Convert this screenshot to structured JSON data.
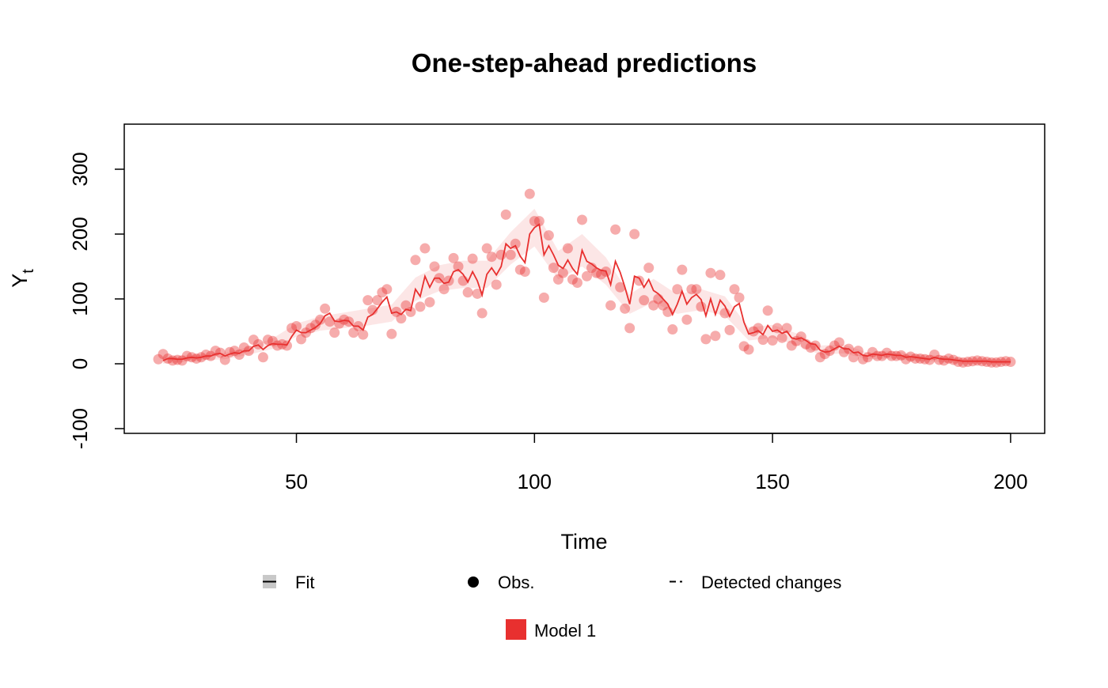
{
  "chart_data": {
    "type": "line",
    "title": "One-step-ahead predictions",
    "xlabel": "Time",
    "ylabel": {
      "main": "Y",
      "sub": "t"
    },
    "x": [
      21,
      22,
      23,
      24,
      25,
      26,
      27,
      28,
      29,
      30,
      31,
      32,
      33,
      34,
      35,
      36,
      37,
      38,
      39,
      40,
      41,
      42,
      43,
      44,
      45,
      46,
      47,
      48,
      49,
      50,
      51,
      52,
      53,
      54,
      55,
      56,
      57,
      58,
      59,
      60,
      61,
      62,
      63,
      64,
      65,
      66,
      67,
      68,
      69,
      70,
      71,
      72,
      73,
      74,
      75,
      76,
      77,
      78,
      79,
      80,
      81,
      82,
      83,
      84,
      85,
      86,
      87,
      88,
      89,
      90,
      91,
      92,
      93,
      94,
      95,
      96,
      97,
      98,
      99,
      100,
      101,
      102,
      103,
      104,
      105,
      106,
      107,
      108,
      109,
      110,
      111,
      112,
      113,
      114,
      115,
      116,
      117,
      118,
      119,
      120,
      121,
      122,
      123,
      124,
      125,
      126,
      127,
      128,
      129,
      130,
      131,
      132,
      133,
      134,
      135,
      136,
      137,
      138,
      139,
      140,
      141,
      142,
      143,
      144,
      145,
      146,
      147,
      148,
      149,
      150,
      151,
      152,
      153,
      154,
      155,
      156,
      157,
      158,
      159,
      160,
      161,
      162,
      163,
      164,
      165,
      166,
      167,
      168,
      169,
      170,
      171,
      172,
      173,
      174,
      175,
      176,
      177,
      178,
      179,
      180,
      181,
      182,
      183,
      184,
      185,
      186,
      187,
      188,
      189,
      190,
      191,
      192,
      193,
      194,
      195,
      196,
      197,
      198,
      199,
      200
    ],
    "series": [
      {
        "name": "Model 1",
        "color": "#E8302F",
        "observations": [
          7,
          15,
          8,
          5,
          6,
          5,
          12,
          10,
          8,
          10,
          14,
          12,
          20,
          17,
          6,
          18,
          20,
          14,
          25,
          20,
          37,
          30,
          10,
          37,
          35,
          28,
          30,
          28,
          55,
          58,
          38,
          48,
          55,
          60,
          68,
          85,
          65,
          48,
          62,
          68,
          65,
          48,
          58,
          45,
          98,
          83,
          98,
          110,
          115,
          46,
          80,
          70,
          90,
          80,
          160,
          88,
          178,
          95,
          150,
          132,
          115,
          128,
          163,
          150,
          128,
          110,
          162,
          108,
          78,
          178,
          165,
          122,
          168,
          230,
          168,
          185,
          145,
          142,
          262,
          220,
          220,
          102,
          198,
          148,
          130,
          140,
          178,
          130,
          125,
          222,
          135,
          148,
          140,
          138,
          142,
          90,
          207,
          118,
          85,
          55,
          200,
          128,
          98,
          148,
          90,
          100,
          90,
          80,
          53,
          115,
          145,
          68,
          115,
          115,
          88,
          38,
          140,
          43,
          137,
          78,
          52,
          115,
          102,
          27,
          22,
          50,
          55,
          37,
          82,
          36,
          55,
          40,
          55,
          28,
          35,
          42,
          30,
          25,
          28,
          10,
          15,
          20,
          28,
          33,
          18,
          23,
          10,
          20,
          7,
          10,
          18,
          12,
          12,
          17,
          12,
          12,
          13,
          7,
          11,
          8,
          8,
          7,
          6,
          14,
          6,
          5,
          8,
          6,
          3,
          2,
          3,
          4,
          5,
          4,
          3,
          2,
          2,
          3,
          4,
          3
        ],
        "fit": [
          null,
          5,
          8,
          8,
          7,
          7,
          9,
          10,
          9,
          10,
          12,
          12,
          15,
          16,
          12,
          15,
          17,
          16,
          20,
          20,
          27,
          29,
          22,
          28,
          31,
          30,
          30,
          29,
          42,
          52,
          48,
          48,
          52,
          56,
          62,
          74,
          78,
          66,
          65,
          67,
          66,
          58,
          58,
          52,
          72,
          76,
          85,
          95,
          103,
          78,
          80,
          76,
          84,
          82,
          115,
          104,
          135,
          118,
          132,
          132,
          124,
          126,
          142,
          145,
          138,
          126,
          142,
          128,
          106,
          138,
          148,
          137,
          150,
          185,
          178,
          182,
          166,
          156,
          200,
          210,
          215,
          168,
          182,
          168,
          152,
          147,
          160,
          147,
          138,
          175,
          158,
          154,
          148,
          144,
          143,
          122,
          158,
          141,
          118,
          92,
          135,
          132,
          118,
          130,
          113,
          108,
          100,
          92,
          76,
          92,
          112,
          92,
          102,
          107,
          99,
          74,
          100,
          76,
          98,
          89,
          73,
          88,
          93,
          64,
          46,
          48,
          51,
          45,
          59,
          50,
          52,
          47,
          50,
          40,
          38,
          40,
          36,
          31,
          30,
          21,
          18,
          19,
          23,
          27,
          23,
          23,
          17,
          18,
          13,
          12,
          15,
          14,
          13,
          15,
          14,
          13,
          13,
          10,
          11,
          10,
          9,
          8,
          7,
          10,
          8,
          7,
          7,
          6,
          5,
          4,
          4,
          4,
          4,
          4,
          4,
          3,
          3,
          3,
          3,
          3
        ]
      }
    ],
    "band": {
      "x": [
        22,
        25,
        30,
        35,
        40,
        45,
        50,
        55,
        60,
        65,
        70,
        75,
        80,
        85,
        90,
        95,
        100,
        105,
        110,
        115,
        120,
        125,
        130,
        135,
        140,
        145,
        150,
        155,
        160,
        165,
        170,
        175,
        180,
        185,
        190,
        195,
        200
      ],
      "lower": [
        0,
        2,
        5,
        7,
        14,
        23,
        42,
        51,
        55,
        59,
        65,
        97,
        112,
        117,
        117,
        153,
        181,
        130,
        150,
        122,
        77,
        95,
        77,
        83,
        74,
        36,
        40,
        29,
        14,
        16,
        7,
        8,
        5,
        3,
        0,
        0,
        -1
      ],
      "upper": [
        10,
        12,
        15,
        17,
        26,
        39,
        62,
        73,
        79,
        85,
        91,
        133,
        152,
        159,
        159,
        203,
        239,
        174,
        200,
        164,
        107,
        131,
        107,
        115,
        104,
        56,
        60,
        47,
        28,
        30,
        17,
        20,
        15,
        13,
        8,
        8,
        7
      ]
    },
    "legend_items": [
      "Fit",
      "Obs.",
      "Detected changes"
    ],
    "xlim": [
      13.84,
      207.16
    ],
    "ylim": [
      -107.3,
      369.5
    ],
    "xticks": [
      50,
      100,
      150,
      200
    ],
    "yticks": [
      -100,
      0,
      100,
      200,
      300
    ]
  }
}
